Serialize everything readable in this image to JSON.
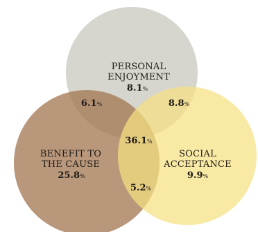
{
  "sets": {
    "personal_enjoyment": {
      "label_line1": "PERSONAL",
      "label_line2": "ENJOYMENT",
      "value": "8.1",
      "unit": "%",
      "color": "#cfcec5"
    },
    "benefit_to_cause": {
      "label_line1": "BENEFIT TO",
      "label_line2": "THE CAUSE",
      "value": "25.8",
      "unit": "%",
      "color": "#b08a6a"
    },
    "social_acceptance": {
      "label_line1": "SOCIAL",
      "label_line2": "ACCEPTANCE",
      "value": "9.9",
      "unit": "%",
      "color": "#f6e592"
    }
  },
  "overlaps": {
    "enjoyment_and_cause": {
      "value": "6.1",
      "unit": "%"
    },
    "enjoyment_and_acceptance": {
      "value": "8.8",
      "unit": "%"
    },
    "cause_and_acceptance": {
      "value": "5.2",
      "unit": "%"
    },
    "all_three": {
      "value": "36.1",
      "unit": "%"
    }
  }
}
